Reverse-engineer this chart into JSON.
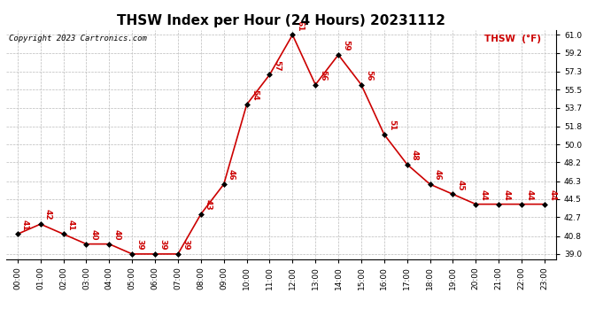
{
  "title": "THSW Index per Hour (24 Hours) 20231112",
  "copyright": "Copyright 2023 Cartronics.com",
  "legend_label": "THSW  (°F)",
  "hours": [
    0,
    1,
    2,
    3,
    4,
    5,
    6,
    7,
    8,
    9,
    10,
    11,
    12,
    13,
    14,
    15,
    16,
    17,
    18,
    19,
    20,
    21,
    22,
    23
  ],
  "values": [
    41,
    42,
    41,
    40,
    40,
    39,
    39,
    39,
    43,
    46,
    54,
    57,
    61,
    56,
    59,
    56,
    51,
    48,
    46,
    45,
    44,
    44,
    44,
    44
  ],
  "hour_labels": [
    "00:00",
    "01:00",
    "02:00",
    "03:00",
    "04:00",
    "05:00",
    "06:00",
    "07:00",
    "08:00",
    "09:00",
    "10:00",
    "11:00",
    "12:00",
    "13:00",
    "14:00",
    "15:00",
    "16:00",
    "17:00",
    "18:00",
    "19:00",
    "20:00",
    "21:00",
    "22:00",
    "23:00"
  ],
  "yticks": [
    39.0,
    40.8,
    42.7,
    44.5,
    46.3,
    48.2,
    50.0,
    51.8,
    53.7,
    55.5,
    57.3,
    59.2,
    61.0
  ],
  "ylim": [
    38.5,
    61.5
  ],
  "line_color": "#cc0000",
  "marker_color": "#000000",
  "marker_size": 3,
  "line_width": 1.2,
  "label_color": "#cc0000",
  "label_fontsize": 6.5,
  "title_fontsize": 11,
  "copyright_fontsize": 6.5,
  "legend_color": "#cc0000",
  "legend_fontsize": 7.5,
  "grid_color": "#bbbbbb",
  "bg_color": "#ffffff",
  "axis_label_fontsize": 6.5,
  "fig_width": 6.9,
  "fig_height": 3.75,
  "dpi": 100
}
